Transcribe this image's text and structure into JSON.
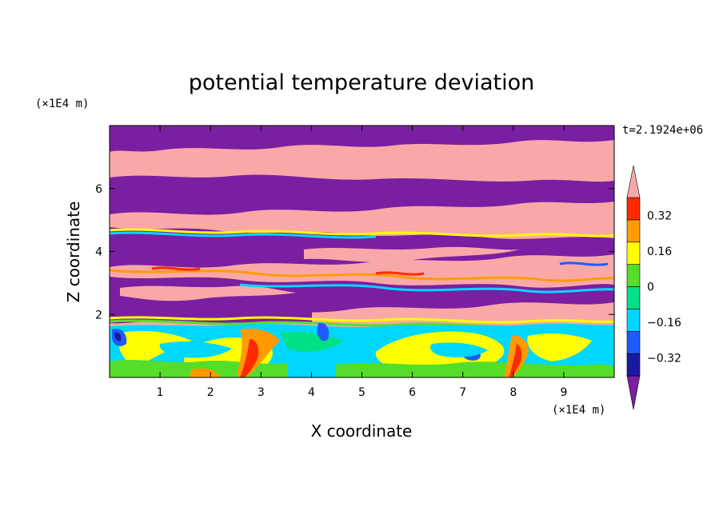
{
  "chart_data": {
    "type": "heatmap",
    "title": "potential temperature deviation",
    "xlabel": "X coordinate",
    "ylabel": "Z coordinate",
    "x_unit_label": "(×1E4 m)",
    "y_unit_label": "(×1E4 m)",
    "time_label": "t=2.1924e+06",
    "xlim": [
      0,
      10
    ],
    "ylim": [
      0,
      8
    ],
    "x_ticks": [
      "1",
      "2",
      "3",
      "4",
      "5",
      "6",
      "7",
      "8",
      "9"
    ],
    "y_ticks": [
      "2",
      "4",
      "6"
    ],
    "colorbar": {
      "labels": [
        "0.32",
        "0.16",
        "0",
        "−0.16",
        "−0.32"
      ],
      "label_values": [
        0.32,
        0.16,
        0,
        -0.16,
        -0.32
      ],
      "colors_low_to_high": [
        "#7a1fa2",
        "#1a1aa0",
        "#1e5cff",
        "#00d7ff",
        "#00e087",
        "#55dd2a",
        "#ffff00",
        "#ff9b00",
        "#ff2a00",
        "#f9a8a8"
      ],
      "extend": "both"
    },
    "layers": [
      {
        "from_z": 0.0,
        "to_z": 1.6,
        "dominant_colors": [
          "#00d7ff",
          "#ffff00",
          "#55dd2a",
          "#ff9b00"
        ]
      },
      {
        "from_z": 1.6,
        "to_z": 4.8,
        "dominant_colors": [
          "#7a1fa2",
          "#f9a8a8",
          "#ffff00",
          "#00d7ff"
        ]
      },
      {
        "from_z": 4.8,
        "to_z": 8.0,
        "dominant_colors": [
          "#7a1fa2",
          "#f9a8a8"
        ]
      }
    ]
  }
}
